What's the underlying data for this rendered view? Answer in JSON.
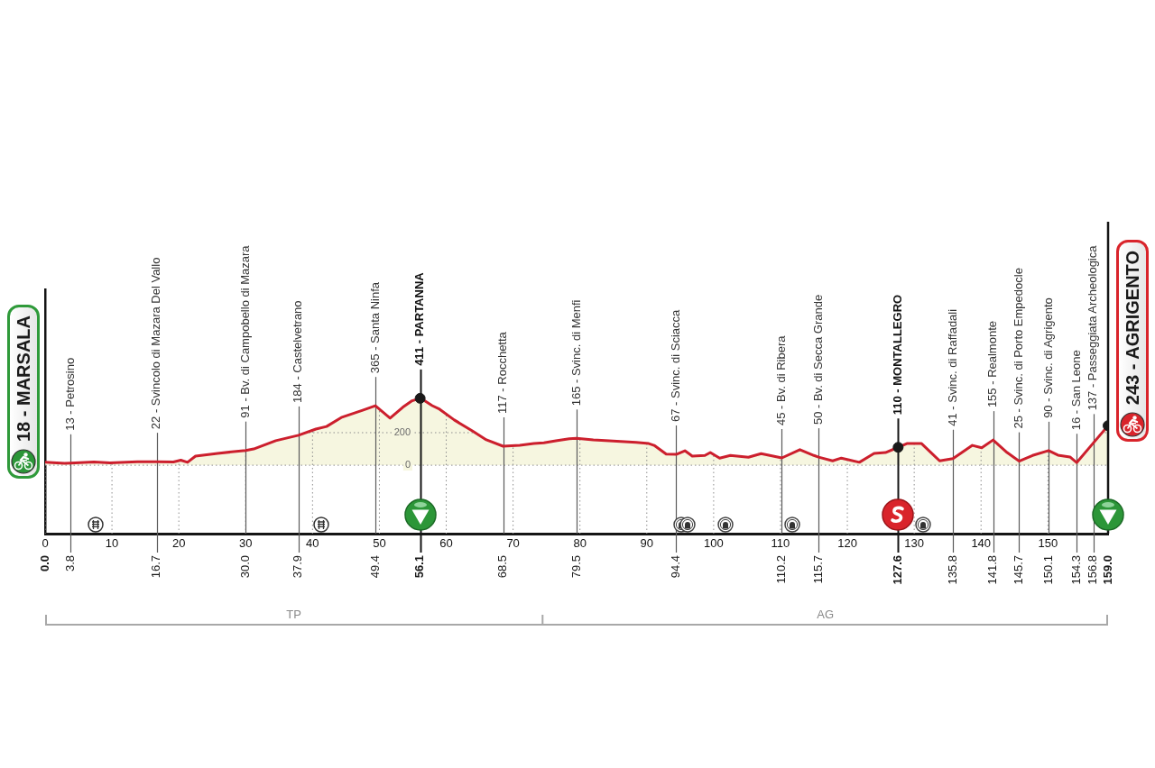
{
  "chart_data": {
    "type": "area",
    "series": [
      {
        "color": "#cc1f2d",
        "x": [
          0,
          2.9,
          3.8,
          7.3,
          9.7,
          13.8,
          16.7,
          19.2,
          20.3,
          21.3,
          22.5,
          25.8,
          30,
          31.2,
          34.5,
          37.9,
          40.5,
          42.1,
          44.3,
          47.5,
          49.4,
          51.6,
          53.5,
          54.9,
          56.1,
          56.6,
          57.9,
          59,
          61.2,
          63.9,
          66,
          68.5,
          71,
          73.1,
          74.6,
          76.4,
          78.4,
          79.5,
          82,
          83.8,
          88.4,
          90.3,
          91.1,
          92.9,
          94.4,
          95.7,
          96.8,
          98.7,
          99.5,
          100.9,
          102.5,
          105.2,
          107.1,
          110.2,
          112.9,
          115,
          115.7,
          117.8,
          119.1,
          121.8,
          124,
          125.7,
          127.6,
          128.9,
          131.1,
          133.8,
          135.8,
          138.7,
          140.1,
          141.8,
          143.9,
          145.7,
          147.7,
          150.1,
          151.5,
          153.3,
          154.3,
          156.8,
          159
        ],
        "values": [
          18,
          12,
          13,
          20,
          15,
          22,
          22,
          20,
          31,
          18,
          56,
          73,
          91,
          100,
          151,
          184,
          222,
          238,
          293,
          338,
          365,
          289,
          356,
          396,
          411,
          400,
          366,
          344,
          278,
          211,
          156,
          117,
          122,
          133,
          138,
          150,
          163,
          165,
          155,
          152,
          141,
          133,
          122,
          68,
          67,
          89,
          56,
          60,
          78,
          44,
          60,
          49,
          71,
          45,
          96,
          60,
          50,
          27,
          44,
          18,
          73,
          78,
          110,
          133,
          133,
          27,
          41,
          122,
          107,
          155,
          78,
          25,
          60,
          90,
          62,
          51,
          16,
          137,
          243
        ]
      },
      {
        "type": "scatter",
        "color": "#1a1a1a",
        "marker": "circle",
        "x": [
          56.1,
          127.6,
          159
        ],
        "values": [
          411,
          110,
          243
        ]
      }
    ],
    "xlim": [
      0,
      159
    ],
    "xticks": [
      0,
      10,
      20,
      30,
      40,
      50,
      60,
      70,
      80,
      90,
      100,
      110,
      120,
      130,
      140,
      150
    ],
    "x2lim": [
      0,
      159
    ],
    "x2ticks": [
      {
        "value": 0,
        "label": "0.0"
      },
      3.8,
      16.7,
      {
        "value": 30,
        "label": "30.0"
      },
      37.9,
      49.4,
      56.1,
      68.5,
      79.5,
      94.4,
      110.2,
      115.7,
      127.6,
      135.8,
      141.8,
      145.7,
      150.1,
      154.3,
      156.8,
      {
        "value": 159,
        "label": "159.0"
      }
    ],
    "ylim": [
      -420,
      1080
    ],
    "yticks": [
      0,
      200
    ],
    "grid": true,
    "annotations": [
      {
        "text": "18 - MARSALA",
        "x": 0,
        "y": 18
      },
      {
        "text": "13 - Petrosino",
        "x": 3.8,
        "y": 13
      },
      {
        "text": "22 - Svincolo di Mazara Del Vallo",
        "x": 16.7,
        "y": 22
      },
      {
        "text": "91 - Bv. di Campobello di Mazara",
        "x": 30,
        "y": 91
      },
      {
        "text": "184 - Castelvetrano",
        "x": 37.9,
        "y": 184
      },
      {
        "text": "365 - Santa Ninfa",
        "x": 49.4,
        "y": 365
      },
      {
        "text": "411 - PARTANNA",
        "x": 56.1,
        "y": 411
      },
      {
        "text": "117 - Rocchetta",
        "x": 68.5,
        "y": 117
      },
      {
        "text": "165 - Svinc. di Menfi",
        "x": 79.5,
        "y": 165
      },
      {
        "text": "67 - Svinc. di Sciacca",
        "x": 94.4,
        "y": 67
      },
      {
        "text": "45 - Bv. di Ribera",
        "x": 110.2,
        "y": 45
      },
      {
        "text": "50 - Bv. di Secca Grande",
        "x": 115.7,
        "y": 50
      },
      {
        "text": "110 - MONTALLEGRO",
        "x": 127.6,
        "y": 110
      },
      {
        "text": "41 - Svinc. di Raffadali",
        "x": 135.8,
        "y": 41
      },
      {
        "text": "155 - Realmonte",
        "x": 141.8,
        "y": 155
      },
      {
        "text": "25 - Svinc. di Porto Empedocle",
        "x": 145.7,
        "y": 25
      },
      {
        "text": "90 - Svinc. di Agrigento",
        "x": 150.1,
        "y": 90
      },
      {
        "text": "16 - San Leone",
        "x": 154.3,
        "y": 16
      },
      {
        "text": "137 - Passeggiata Archeologica",
        "x": 156.8,
        "y": 137
      },
      {
        "text": "243 - AGRIGENTO",
        "x": 159,
        "y": 243
      },
      "TP",
      "AG"
    ]
  }
}
